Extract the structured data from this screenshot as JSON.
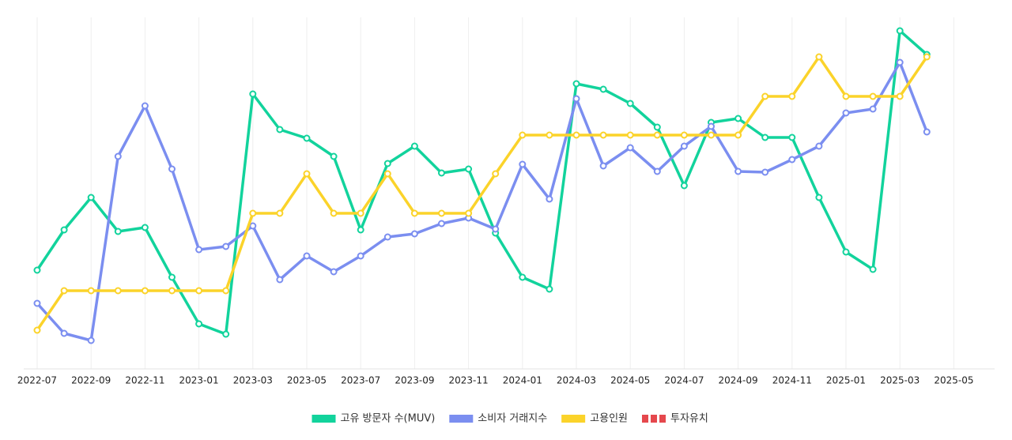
{
  "chart_data": {
    "type": "line",
    "categories": [
      "2022-07",
      null,
      "2022-09",
      null,
      "2022-11",
      null,
      "2023-01",
      null,
      "2023-03",
      null,
      "2023-05",
      null,
      "2023-07",
      null,
      "2023-09",
      null,
      "2023-11",
      null,
      "2024-01",
      null,
      "2024-03",
      null,
      "2024-05",
      null,
      "2024-07",
      null,
      "2024-09",
      null,
      "2024-11",
      null,
      "2025-01",
      null,
      "2025-03",
      null,
      "2025-05"
    ],
    "series": [
      {
        "name": "고유 방문자 수(MUV)",
        "color": "#12d39c",
        "values": [
          125,
          176,
          217,
          174,
          179,
          116,
          57,
          44,
          348,
          303,
          292,
          269,
          176,
          260,
          282,
          248,
          253,
          172,
          116,
          101,
          361,
          354,
          336,
          306,
          232,
          312,
          317,
          293,
          293,
          217,
          148,
          126,
          428,
          398,
          null
        ]
      },
      {
        "name": "소비자 거래지수",
        "color": "#7b8ef0",
        "values": [
          83,
          45,
          36,
          269,
          333,
          253,
          151,
          155,
          181,
          113,
          143,
          123,
          143,
          167,
          171,
          184,
          191,
          177,
          259,
          215,
          342,
          257,
          280,
          250,
          282,
          307,
          250,
          249,
          265,
          282,
          324,
          329,
          388,
          300,
          null
        ]
      },
      {
        "name": "고용인원",
        "color": "#fbd32a",
        "values": [
          49,
          99,
          99,
          99,
          99,
          99,
          99,
          99,
          197,
          197,
          247,
          197,
          197,
          247,
          197,
          197,
          197,
          247,
          296,
          296,
          296,
          296,
          296,
          296,
          296,
          296,
          296,
          345,
          345,
          395,
          345,
          345,
          345,
          395,
          null
        ]
      },
      {
        "name": "투자유치",
        "color": "#e5484d",
        "values": [
          null,
          null,
          null,
          null,
          null,
          null,
          null,
          null,
          null,
          null,
          null,
          null,
          null,
          null,
          null,
          null,
          null,
          null,
          null,
          null,
          null,
          null,
          null,
          null,
          null,
          null,
          null,
          null,
          null,
          null,
          null,
          null,
          null,
          null,
          null
        ]
      }
    ],
    "ylim": [
      0,
      445
    ],
    "grid": true,
    "legend": "bottom"
  }
}
